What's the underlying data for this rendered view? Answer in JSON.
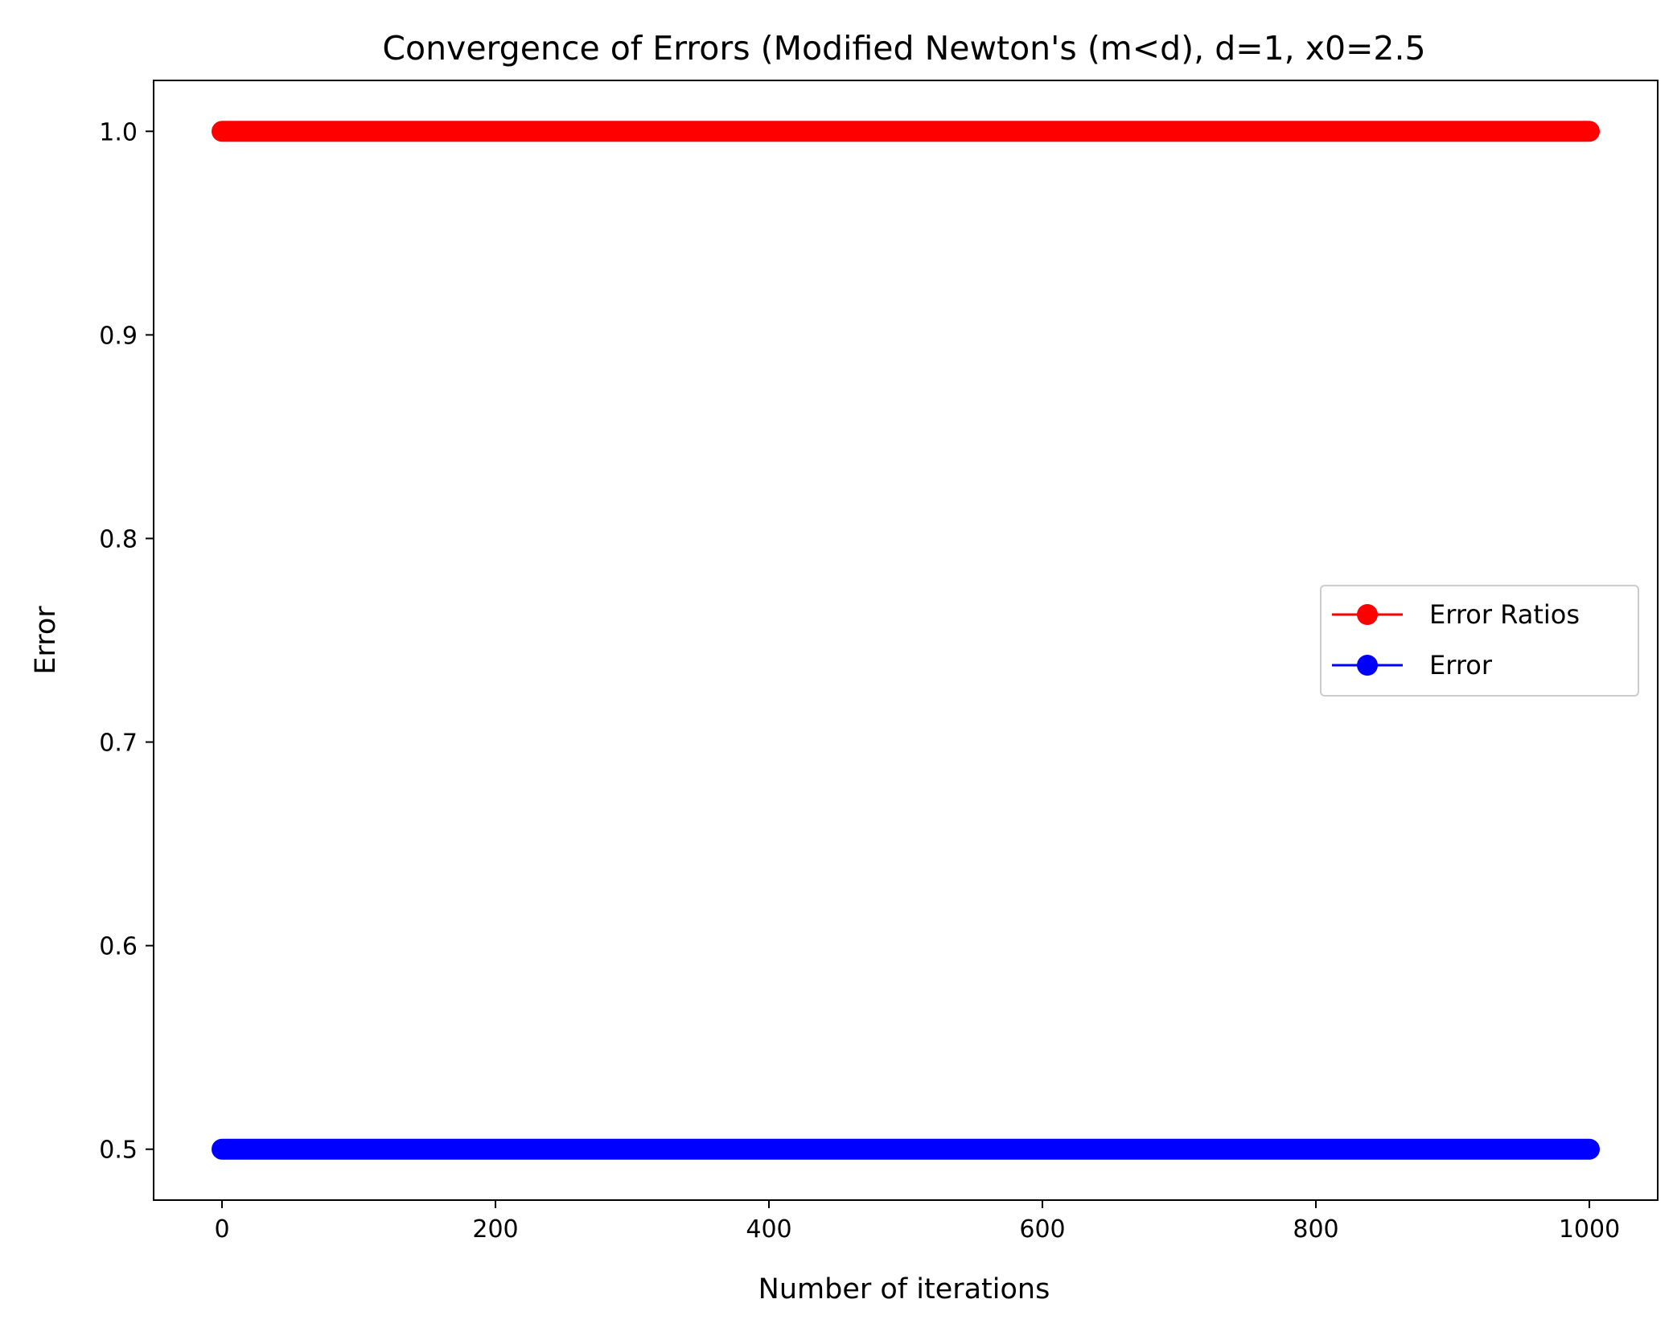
{
  "chart_data": {
    "type": "line",
    "title": "Convergence of Errors (Modified Newton's (m<d), d=1, x0=2.5",
    "xlabel": "Number of iterations",
    "ylabel": "Error",
    "xlim": [
      -50,
      1050
    ],
    "ylim": [
      0.475,
      1.025
    ],
    "xticks": [
      0,
      200,
      400,
      600,
      800,
      1000
    ],
    "xtick_labels": [
      "0",
      "200",
      "400",
      "600",
      "800",
      "1000"
    ],
    "yticks": [
      0.5,
      0.6,
      0.7,
      0.8,
      0.9,
      1.0
    ],
    "ytick_labels": [
      "0.5",
      "0.6",
      "0.7",
      "0.8",
      "0.9",
      "1.0"
    ],
    "grid": false,
    "legend_position": "center-right",
    "series": [
      {
        "name": "Error Ratios",
        "color": "#ff0000",
        "marker": "circle",
        "x_range": [
          0,
          1000
        ],
        "constant_value": 1.0
      },
      {
        "name": "Error",
        "color": "#0000ff",
        "marker": "circle",
        "x_range": [
          0,
          1000
        ],
        "constant_value": 0.5
      }
    ]
  }
}
